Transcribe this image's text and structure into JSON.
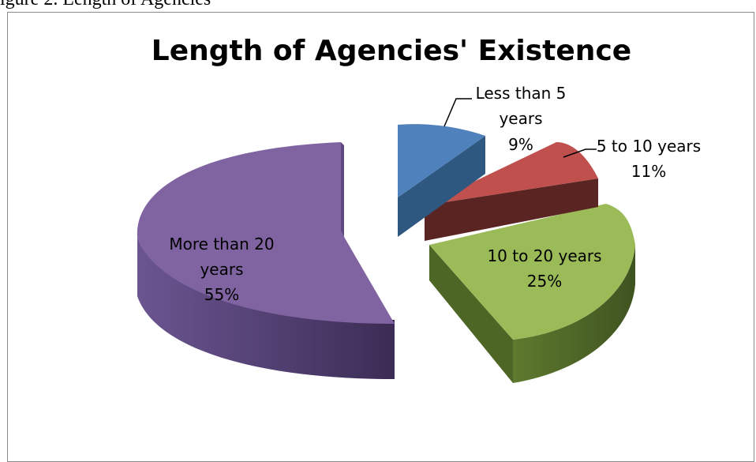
{
  "caption": "igure 2. Length of Agencies",
  "chart_data": {
    "type": "pie",
    "title": "Length of Agencies' Existence",
    "slices": [
      {
        "label_lines": [
          "Less than 5",
          "years"
        ],
        "percent_label": "9%",
        "value": 9,
        "color": "#4f81bd"
      },
      {
        "label_lines": [
          "5 to 10 years"
        ],
        "percent_label": "11%",
        "value": 11,
        "color": "#c0504d"
      },
      {
        "label_lines": [
          "10 to 20 years"
        ],
        "percent_label": "25%",
        "value": 25,
        "color": "#9bbb59"
      },
      {
        "label_lines": [
          "More than 20",
          "years"
        ],
        "percent_label": "55%",
        "value": 55,
        "color": "#8064a2"
      }
    ],
    "style": "3d-exploded",
    "legend": "none"
  }
}
